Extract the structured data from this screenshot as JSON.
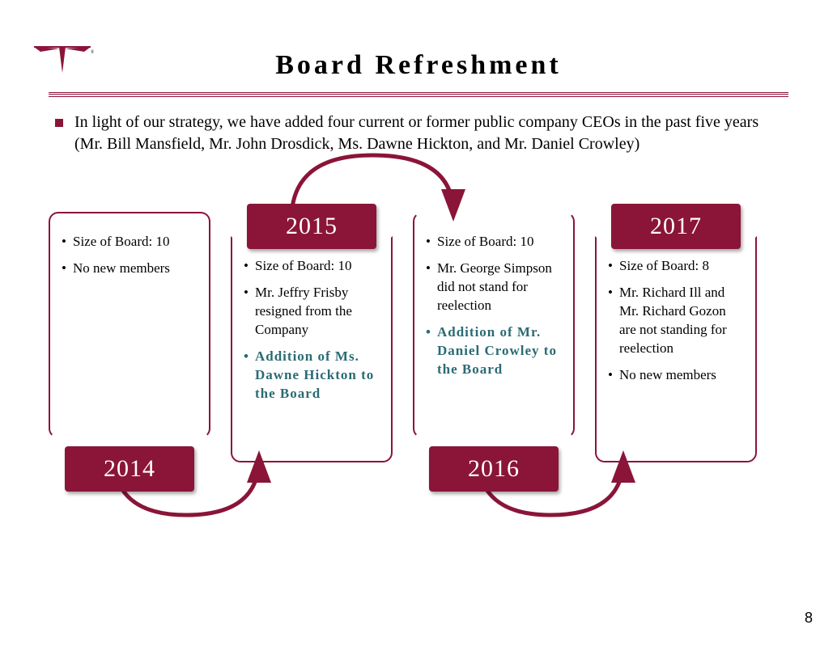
{
  "title": "Board Refreshment",
  "intro": "In light of our strategy, we have added four current or former public company CEOs in the past five years (Mr. Bill Mansfield, Mr. John Drosdick, Ms. Dawne Hickton, and Mr. Daniel Crowley)",
  "page_number": "8",
  "colors": {
    "brand": "#8a1538",
    "highlight": "#2a6b73",
    "text": "#000000",
    "background": "#ffffff"
  },
  "years": {
    "y2014": {
      "label": "2014",
      "items": [
        {
          "text": "Size of Board: 10",
          "highlight": false
        },
        {
          "text": "No new members",
          "highlight": false
        }
      ]
    },
    "y2015": {
      "label": "2015",
      "items": [
        {
          "text": "Size of Board: 10",
          "highlight": false
        },
        {
          "text": "Mr. Jeffry Frisby resigned from the Company",
          "highlight": false
        },
        {
          "text": "Addition of Ms. Dawne Hickton to the Board",
          "highlight": true
        }
      ]
    },
    "y2016": {
      "label": "2016",
      "items": [
        {
          "text": "Size of Board: 10",
          "highlight": false
        },
        {
          "text": "Mr. George Simpson did not stand for reelection",
          "highlight": false
        },
        {
          "text": "Addition of Mr. Daniel Crowley to the Board",
          "highlight": true
        }
      ]
    },
    "y2017": {
      "label": "2017",
      "items": [
        {
          "text": "Size of Board: 8",
          "highlight": false
        },
        {
          "text": "Mr. Richard Ill and Mr. Richard Gozon are not standing for reelection",
          "highlight": false
        },
        {
          "text": "No new members",
          "highlight": false
        }
      ]
    }
  }
}
